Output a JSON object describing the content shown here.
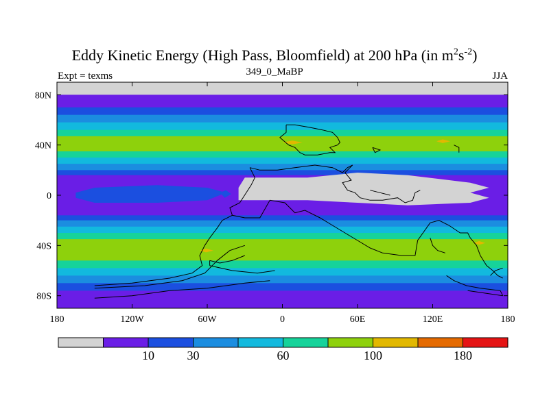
{
  "title": {
    "main": "Eddy Kinetic Energy (High Pass, Bloomfield) at 200 hPa (in m",
    "sup1": "2",
    "mid": "s",
    "sup2": "-2",
    "end": ")"
  },
  "subtitle": "349_0_MaBP",
  "left_label": "Expt = texms",
  "right_label": "JJA",
  "chart_data": {
    "type": "heatmap",
    "title": "Eddy Kinetic Energy (High Pass, Bloomfield) at 200 hPa (in m^2s^-2)",
    "subtitle": "349_0_MaBP",
    "xlim": [
      -180,
      180
    ],
    "ylim": [
      -90,
      90
    ],
    "x_ticks": [
      {
        "value": -180,
        "label": "180"
      },
      {
        "value": -120,
        "label": "120W"
      },
      {
        "value": -60,
        "label": "60W"
      },
      {
        "value": 0,
        "label": "0"
      },
      {
        "value": 60,
        "label": "60E"
      },
      {
        "value": 120,
        "label": "120E"
      },
      {
        "value": 180,
        "label": "180"
      }
    ],
    "y_ticks": [
      {
        "value": 80,
        "label": "80N"
      },
      {
        "value": 40,
        "label": "40N"
      },
      {
        "value": 0,
        "label": "0"
      },
      {
        "value": -40,
        "label": "40S"
      },
      {
        "value": -80,
        "label": "80S"
      }
    ],
    "colorbar": {
      "bins": [
        {
          "color": "#d3d3d3"
        },
        {
          "color": "#6a1ee6"
        },
        {
          "color": "#1b4fe0"
        },
        {
          "color": "#1b8de0"
        },
        {
          "color": "#12b9de"
        },
        {
          "color": "#16d39a"
        },
        {
          "color": "#8ed10c"
        },
        {
          "color": "#e2b800"
        },
        {
          "color": "#e56a00"
        },
        {
          "color": "#e51414"
        }
      ],
      "labels": [
        {
          "value": 10,
          "text": "10",
          "boundary": 2
        },
        {
          "value": 30,
          "text": "30",
          "boundary": 3
        },
        {
          "value": 60,
          "text": "60",
          "boundary": 5
        },
        {
          "value": 100,
          "text": "100",
          "boundary": 7
        },
        {
          "value": 180,
          "text": "180",
          "boundary": 9
        }
      ]
    },
    "zonal_bands": [
      {
        "lat_from": 90,
        "lat_to": 80,
        "bin": 0
      },
      {
        "lat_from": 80,
        "lat_to": 70,
        "bin": 1
      },
      {
        "lat_from": 70,
        "lat_to": 64,
        "bin": 2
      },
      {
        "lat_from": 64,
        "lat_to": 58,
        "bin": 3
      },
      {
        "lat_from": 58,
        "lat_to": 52,
        "bin": 4
      },
      {
        "lat_from": 52,
        "lat_to": 47,
        "bin": 5
      },
      {
        "lat_from": 47,
        "lat_to": 35,
        "bin": 6
      },
      {
        "lat_from": 35,
        "lat_to": 30,
        "bin": 5
      },
      {
        "lat_from": 30,
        "lat_to": 25,
        "bin": 4
      },
      {
        "lat_from": 25,
        "lat_to": 20,
        "bin": 3
      },
      {
        "lat_from": 20,
        "lat_to": 16,
        "bin": 2
      },
      {
        "lat_from": 16,
        "lat_to": -16,
        "bin": 1
      },
      {
        "lat_from": -16,
        "lat_to": -20,
        "bin": 2
      },
      {
        "lat_from": -20,
        "lat_to": -25,
        "bin": 3
      },
      {
        "lat_from": -25,
        "lat_to": -30,
        "bin": 4
      },
      {
        "lat_from": -30,
        "lat_to": -35,
        "bin": 5
      },
      {
        "lat_from": -35,
        "lat_to": -52,
        "bin": 6
      },
      {
        "lat_from": -52,
        "lat_to": -58,
        "bin": 5
      },
      {
        "lat_from": -58,
        "lat_to": -64,
        "bin": 4
      },
      {
        "lat_from": -64,
        "lat_to": -70,
        "bin": 3
      },
      {
        "lat_from": -70,
        "lat_to": -76,
        "bin": 2
      },
      {
        "lat_from": -76,
        "lat_to": -90,
        "bin": 1
      }
    ],
    "features": [
      {
        "name": "equatorial-low-region",
        "bin": 0,
        "polygon": [
          [
            -30,
            14
          ],
          [
            20,
            14
          ],
          [
            60,
            18
          ],
          [
            100,
            16
          ],
          [
            150,
            10
          ],
          [
            165,
            6
          ],
          [
            150,
            2
          ],
          [
            165,
            -2
          ],
          [
            150,
            -6
          ],
          [
            100,
            -8
          ],
          [
            60,
            -6
          ],
          [
            20,
            -4
          ],
          [
            -35,
            -4
          ],
          [
            -35,
            6
          ]
        ]
      },
      {
        "name": "pacific-equatorial-blue",
        "bin": 2,
        "polygon": [
          [
            -165,
            2
          ],
          [
            -150,
            6
          ],
          [
            -100,
            8
          ],
          [
            -60,
            6
          ],
          [
            -45,
            2
          ],
          [
            -60,
            -4
          ],
          [
            -100,
            -6
          ],
          [
            -150,
            -6
          ],
          [
            -165,
            -2
          ]
        ]
      },
      {
        "name": "pacific-equatorial-spot",
        "bin": 2,
        "polygon": [
          [
            -50,
            2
          ],
          [
            -45,
            4
          ],
          [
            -41,
            1
          ],
          [
            -46,
            -2
          ]
        ]
      },
      {
        "name": "north-jet-max-atlantic",
        "bin": 7,
        "polygon": [
          [
            0,
            42
          ],
          [
            8,
            43.5
          ],
          [
            16,
            42
          ],
          [
            8,
            40.5
          ]
        ]
      },
      {
        "name": "north-jet-max-pacific",
        "bin": 7,
        "polygon": [
          [
            123,
            43
          ],
          [
            128,
            44.5
          ],
          [
            134,
            43
          ],
          [
            128,
            41.5
          ]
        ]
      },
      {
        "name": "south-jet-max-a",
        "bin": 7,
        "polygon": [
          [
            -66,
            -44
          ],
          [
            -61,
            -42.5
          ],
          [
            -55,
            -44
          ],
          [
            -61,
            -45.5
          ]
        ]
      },
      {
        "name": "south-jet-max-b",
        "bin": 7,
        "polygon": [
          [
            153,
            -38
          ],
          [
            157,
            -36.5
          ],
          [
            162,
            -38
          ],
          [
            157,
            -39.5
          ]
        ]
      }
    ],
    "boundary_lines": [
      [
        [
          3,
          56
        ],
        [
          3,
          50
        ],
        [
          -2,
          46
        ],
        [
          5,
          40
        ],
        [
          10,
          38
        ],
        [
          14,
          34
        ],
        [
          18,
          32
        ],
        [
          28,
          32
        ],
        [
          38,
          34
        ],
        [
          42,
          34
        ],
        [
          38,
          38
        ],
        [
          44,
          40
        ],
        [
          46,
          42
        ],
        [
          44,
          46
        ],
        [
          40,
          50
        ],
        [
          32,
          52
        ],
        [
          22,
          54
        ],
        [
          10,
          56
        ],
        [
          3,
          56
        ]
      ],
      [
        [
          -26,
          22
        ],
        [
          -22,
          14
        ],
        [
          -25,
          8
        ],
        [
          -34,
          -6
        ],
        [
          -42,
          -10
        ],
        [
          -40,
          -16
        ],
        [
          -30,
          -18
        ],
        [
          -18,
          -18
        ],
        [
          -10,
          -4
        ],
        [
          2,
          -6
        ],
        [
          10,
          -14
        ],
        [
          18,
          -12
        ],
        [
          30,
          -18
        ],
        [
          40,
          -24
        ],
        [
          50,
          -30
        ],
        [
          60,
          -36
        ],
        [
          70,
          -42
        ],
        [
          80,
          -46
        ],
        [
          95,
          -48
        ],
        [
          106,
          -48
        ],
        [
          108,
          -36
        ],
        [
          118,
          -22
        ],
        [
          125,
          -20
        ],
        [
          133,
          -24
        ],
        [
          142,
          -30
        ],
        [
          148,
          -30
        ],
        [
          150,
          -34
        ],
        [
          155,
          -40
        ],
        [
          158,
          -48
        ],
        [
          163,
          -56
        ],
        [
          168,
          -60
        ],
        [
          172,
          -64
        ],
        [
          176,
          -66
        ]
      ],
      [
        [
          -26,
          22
        ],
        [
          -18,
          20
        ],
        [
          -4,
          20
        ],
        [
          10,
          22
        ],
        [
          26,
          24
        ],
        [
          40,
          22
        ],
        [
          48,
          18
        ],
        [
          52,
          22
        ],
        [
          56,
          24
        ]
      ],
      [
        [
          56,
          24
        ],
        [
          50,
          18
        ],
        [
          55,
          12
        ],
        [
          48,
          10
        ],
        [
          52,
          4
        ],
        [
          58,
          2
        ],
        [
          62,
          -2
        ],
        [
          70,
          -4
        ],
        [
          80,
          -4
        ],
        [
          92,
          -2
        ],
        [
          98,
          -6
        ],
        [
          104,
          -4
        ],
        [
          106,
          2
        ],
        [
          110,
          4
        ]
      ],
      [
        [
          -150,
          -72
        ],
        [
          -120,
          -70
        ],
        [
          -90,
          -66
        ],
        [
          -72,
          -62
        ],
        [
          -64,
          -56
        ],
        [
          -66,
          -48
        ],
        [
          -62,
          -40
        ],
        [
          -58,
          -34
        ],
        [
          -52,
          -26
        ],
        [
          -48,
          -20
        ],
        [
          -40,
          -16
        ]
      ],
      [
        [
          -150,
          -74
        ],
        [
          -110,
          -72
        ],
        [
          -80,
          -68
        ],
        [
          -62,
          -62
        ],
        [
          -52,
          -52
        ],
        [
          -42,
          -44
        ],
        [
          -30,
          -40
        ]
      ],
      [
        [
          -150,
          -82
        ],
        [
          -120,
          -80
        ],
        [
          -90,
          -76
        ],
        [
          -60,
          -74
        ],
        [
          -30,
          -70
        ],
        [
          -10,
          -68
        ]
      ],
      [
        [
          -58,
          -52
        ],
        [
          -50,
          -54
        ],
        [
          -40,
          -52
        ],
        [
          -30,
          -48
        ]
      ],
      [
        [
          -58,
          -56
        ],
        [
          -40,
          -60
        ],
        [
          -20,
          -62
        ],
        [
          -6,
          -60
        ]
      ],
      [
        [
          -58,
          -52
        ],
        [
          -58,
          -56
        ]
      ],
      [
        [
          131,
          -64
        ],
        [
          137,
          -68
        ],
        [
          147,
          -72
        ],
        [
          158,
          -74
        ],
        [
          174,
          -76
        ],
        [
          176,
          -80
        ]
      ],
      [
        [
          148,
          -76
        ],
        [
          162,
          -78
        ],
        [
          176,
          -80
        ]
      ],
      [
        [
          166,
          -64
        ],
        [
          170,
          -60
        ],
        [
          176,
          -58
        ]
      ],
      [
        [
          118,
          -34
        ],
        [
          120,
          -40
        ],
        [
          124,
          -44
        ],
        [
          130,
          -46
        ]
      ],
      [
        [
          70,
          4
        ],
        [
          78,
          2
        ],
        [
          86,
          0
        ]
      ],
      [
        [
          137,
          40
        ],
        [
          141,
          38
        ],
        [
          141,
          34
        ]
      ],
      [
        [
          72,
          38
        ],
        [
          74,
          34
        ],
        [
          78,
          36
        ],
        [
          72,
          38
        ]
      ]
    ]
  }
}
